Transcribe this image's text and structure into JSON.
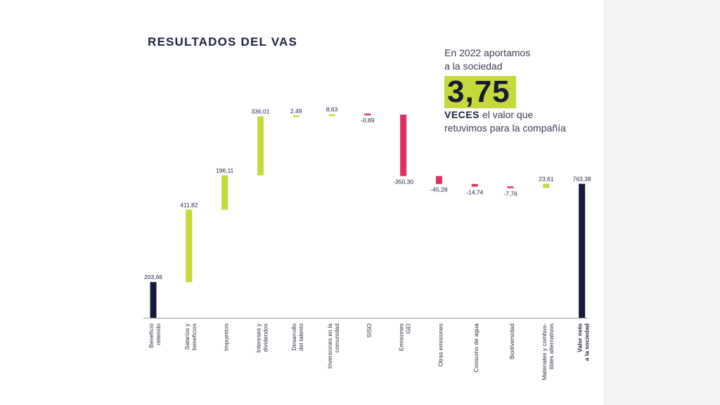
{
  "colors": {
    "total": "#161a3a",
    "positive": "#c5d93a",
    "negative": "#de2e63",
    "accent": "#c5d93a"
  },
  "callout": {
    "line1": "En 2022 aportamos",
    "line2": "a la sociedad",
    "multiple": "3,75",
    "multiple_label": "VECES",
    "line3": " el valor que",
    "line4": "retuvimos para la compañía"
  },
  "chart_data": {
    "type": "bar",
    "subtype": "waterfall",
    "title": "RESULTADOS DEL VAS",
    "xlabel": "",
    "ylabel": "",
    "legend": "none",
    "grid": false,
    "ylim": [
      0,
      1350
    ],
    "items": [
      {
        "category": [
          "Beneficio",
          "retenido"
        ],
        "value": 203.66,
        "label": "203,66",
        "kind": "total"
      },
      {
        "category": [
          "Salarios y",
          "beneficios"
        ],
        "value": 411.82,
        "label": "411,82",
        "kind": "delta"
      },
      {
        "category": [
          "Impuestos"
        ],
        "value": 196.11,
        "label": "196,11",
        "kind": "delta"
      },
      {
        "category": [
          "Intereses y",
          "dividendos"
        ],
        "value": 336.01,
        "label": "336,01",
        "kind": "delta"
      },
      {
        "category": [
          "Desarrollo",
          "del talento"
        ],
        "value": 2.49,
        "label": "2,49",
        "kind": "delta"
      },
      {
        "category": [
          "Inversiones en la",
          "comunidad"
        ],
        "value": 8.63,
        "label": "8,63",
        "kind": "delta"
      },
      {
        "category": [
          "SISO"
        ],
        "value": -0.89,
        "label": "-0,89",
        "kind": "delta"
      },
      {
        "category": [
          "Emisiones",
          "GEI"
        ],
        "value": -350.3,
        "label": "-350,30",
        "kind": "delta"
      },
      {
        "category": [
          "Otras emisiones"
        ],
        "value": -45.28,
        "label": "-45,28",
        "kind": "delta"
      },
      {
        "category": [
          "Consumo de agua"
        ],
        "value": -14.74,
        "label": "-14,74",
        "kind": "delta"
      },
      {
        "category": [
          "Biodiversidad"
        ],
        "value": -7.76,
        "label": "-7,76",
        "kind": "delta"
      },
      {
        "category": [
          "Materiales y combus-",
          "tibles alternativos"
        ],
        "value": 23.61,
        "label": "23,61",
        "kind": "delta"
      },
      {
        "category": [
          "Valor neto",
          "a la sociedad"
        ],
        "value": 763.38,
        "label": "763,38",
        "kind": "total",
        "bold": true
      }
    ]
  }
}
